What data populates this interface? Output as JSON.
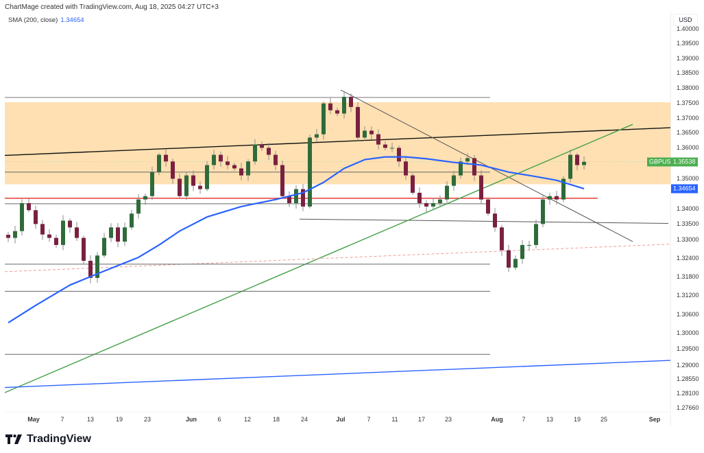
{
  "header": {
    "credit": "ChartMage created with TradingView.com, Aug 18, 2025 04:27 UTC+3"
  },
  "legend": {
    "indicator": "SMA (200, close)",
    "value": "1.34654"
  },
  "price_axis": {
    "currency": "USD",
    "ticks": [
      "1.40000",
      "1.39500",
      "1.39000",
      "1.38500",
      "1.38000",
      "1.37500",
      "1.37000",
      "1.36500",
      "1.36000",
      "1.35000",
      "1.34000",
      "1.33500",
      "1.33000",
      "1.32400",
      "1.31800",
      "1.31200",
      "1.30600",
      "1.30000",
      "1.29500",
      "1.29000",
      "1.28550",
      "1.28100",
      "1.27660"
    ],
    "symbol_label": "GBPUSD",
    "last_price": "1.35538",
    "sma_label": "1.34654"
  },
  "logo": {
    "text": "TradingView"
  },
  "colors": {
    "up": "#2f6b3a",
    "down": "#7a2040",
    "wick": "#8a8a8a",
    "sma": "#2962ff",
    "zone": "#ffe0b2",
    "symbol_label": "#4caf50",
    "sma_label": "#2962ff"
  },
  "chart_data": {
    "type": "candlestick",
    "symbol": "GBPUSD",
    "yscale": "log",
    "ylim": [
      1.2766,
      1.4
    ],
    "xticks": [
      "May",
      "7",
      "13",
      "19",
      "23",
      "Jun",
      "6",
      "12",
      "18",
      "24",
      "Jul",
      "7",
      "11",
      "17",
      "23",
      "Aug",
      "7",
      "13",
      "19",
      "25",
      "Sep"
    ],
    "closes": [
      1.3305,
      1.3327,
      1.3418,
      1.3395,
      1.335,
      1.3316,
      1.3305,
      1.3282,
      1.3361,
      1.3339,
      1.3305,
      1.3231,
      1.3176,
      1.3248,
      1.3305,
      1.3339,
      1.3293,
      1.3339,
      1.3384,
      1.343,
      1.3441,
      1.352,
      1.3577,
      1.3555,
      1.3498,
      1.3441,
      1.3509,
      1.3475,
      1.3464,
      1.3543,
      1.3577,
      1.3555,
      1.3543,
      1.3532,
      1.3509,
      1.3555,
      1.3611,
      1.36,
      1.3577,
      1.3543,
      1.3441,
      1.3418,
      1.3464,
      1.3407,
      1.3634,
      1.3645,
      1.3748,
      1.3725,
      1.3714,
      1.377,
      1.3736,
      1.3634,
      1.3657,
      1.3645,
      1.3611,
      1.36,
      1.36,
      1.3555,
      1.3509,
      1.3452,
      1.3418,
      1.3407,
      1.3418,
      1.343,
      1.3475,
      1.3509,
      1.3555,
      1.3566,
      1.3509,
      1.343,
      1.3384,
      1.3339,
      1.3265,
      1.3209,
      1.3237,
      1.3282,
      1.3282,
      1.335,
      1.343,
      1.3441,
      1.343,
      1.3498,
      1.3577,
      1.3543,
      1.35538
    ],
    "sma": [
      {
        "candle": 0,
        "value": 1.3033
      },
      {
        "candle": 4,
        "value": 1.3088
      },
      {
        "candle": 9,
        "value": 1.3153
      },
      {
        "candle": 14,
        "value": 1.3198
      },
      {
        "candle": 19,
        "value": 1.3242
      },
      {
        "candle": 22,
        "value": 1.3282
      },
      {
        "candle": 25,
        "value": 1.3327
      },
      {
        "candle": 29,
        "value": 1.3373
      },
      {
        "candle": 34,
        "value": 1.3407
      },
      {
        "candle": 39,
        "value": 1.343
      },
      {
        "candle": 43,
        "value": 1.3452
      },
      {
        "candle": 46,
        "value": 1.3486
      },
      {
        "candle": 49,
        "value": 1.3532
      },
      {
        "candle": 52,
        "value": 1.3561
      },
      {
        "candle": 55,
        "value": 1.357
      },
      {
        "candle": 58,
        "value": 1.357
      },
      {
        "candle": 61,
        "value": 1.3564
      },
      {
        "candle": 65,
        "value": 1.3552
      },
      {
        "candle": 69,
        "value": 1.3543
      },
      {
        "candle": 73,
        "value": 1.352
      },
      {
        "candle": 77,
        "value": 1.3505
      },
      {
        "candle": 80,
        "value": 1.3493
      },
      {
        "candle": 84,
        "value": 1.34654
      }
    ],
    "zone": {
      "from": 1.348,
      "to": 1.3752,
      "color": "#ffe0b2"
    },
    "drawings": [
      {
        "name": "resistance-top-line",
        "kind": "segment",
        "c1": 0,
        "p1": 1.3768,
        "c2": 70.8,
        "p2": 1.3768,
        "color": "#777777",
        "width": 1
      },
      {
        "name": "ascending-channel-line",
        "kind": "segment",
        "c1": 0,
        "p1": 1.3575,
        "c2": 97.3,
        "p2": 1.3667,
        "color": "#111111",
        "width": 1.4
      },
      {
        "name": "mid-support-line",
        "kind": "segment",
        "c1": 0,
        "p1": 1.352,
        "c2": 70.8,
        "p2": 1.352,
        "color": "#666666",
        "width": 1
      },
      {
        "name": "red-level-line",
        "kind": "segment",
        "c1": 0,
        "p1": 1.3434,
        "c2": 86.5,
        "p2": 1.3434,
        "color": "#e53935",
        "width": 1.6
      },
      {
        "name": "support-line-1",
        "kind": "segment",
        "c1": 0,
        "p1": 1.3416,
        "c2": 70.8,
        "p2": 1.3416,
        "color": "#666666",
        "width": 1
      },
      {
        "name": "support-line-2",
        "kind": "segment",
        "c1": 43,
        "p1": 1.3366,
        "c2": 96.8,
        "p2": 1.3352,
        "color": "#555555",
        "width": 1
      },
      {
        "name": "descending-trendline",
        "kind": "segment",
        "c1": 49,
        "p1": 1.3793,
        "c2": 91.6,
        "p2": 1.3293,
        "color": "#555555",
        "width": 1
      },
      {
        "name": "green-trendline",
        "kind": "segment",
        "c1": 0,
        "p1": 1.2813,
        "c2": 91.6,
        "p2": 1.3678,
        "color": "#43a047",
        "width": 1.4
      },
      {
        "name": "pink-dashed-line",
        "kind": "dashed",
        "c1": 0,
        "p1": 1.3196,
        "c2": 97.3,
        "p2": 1.3285,
        "color": "#ef9a9a",
        "width": 1
      },
      {
        "name": "support-line-3",
        "kind": "segment",
        "c1": 0,
        "p1": 1.322,
        "c2": 70.8,
        "p2": 1.322,
        "color": "#666666",
        "width": 1
      },
      {
        "name": "support-line-4",
        "kind": "segment",
        "c1": 0,
        "p1": 1.3133,
        "c2": 70.8,
        "p2": 1.3133,
        "color": "#666666",
        "width": 1
      },
      {
        "name": "support-line-5",
        "kind": "segment",
        "c1": 0,
        "p1": 1.2933,
        "c2": 70.8,
        "p2": 1.2933,
        "color": "#666666",
        "width": 1
      },
      {
        "name": "blue-long-trendline",
        "kind": "segment",
        "c1": 0,
        "p1": 1.2829,
        "c2": 97.3,
        "p2": 1.2914,
        "color": "#2962ff",
        "width": 1.4
      }
    ]
  }
}
